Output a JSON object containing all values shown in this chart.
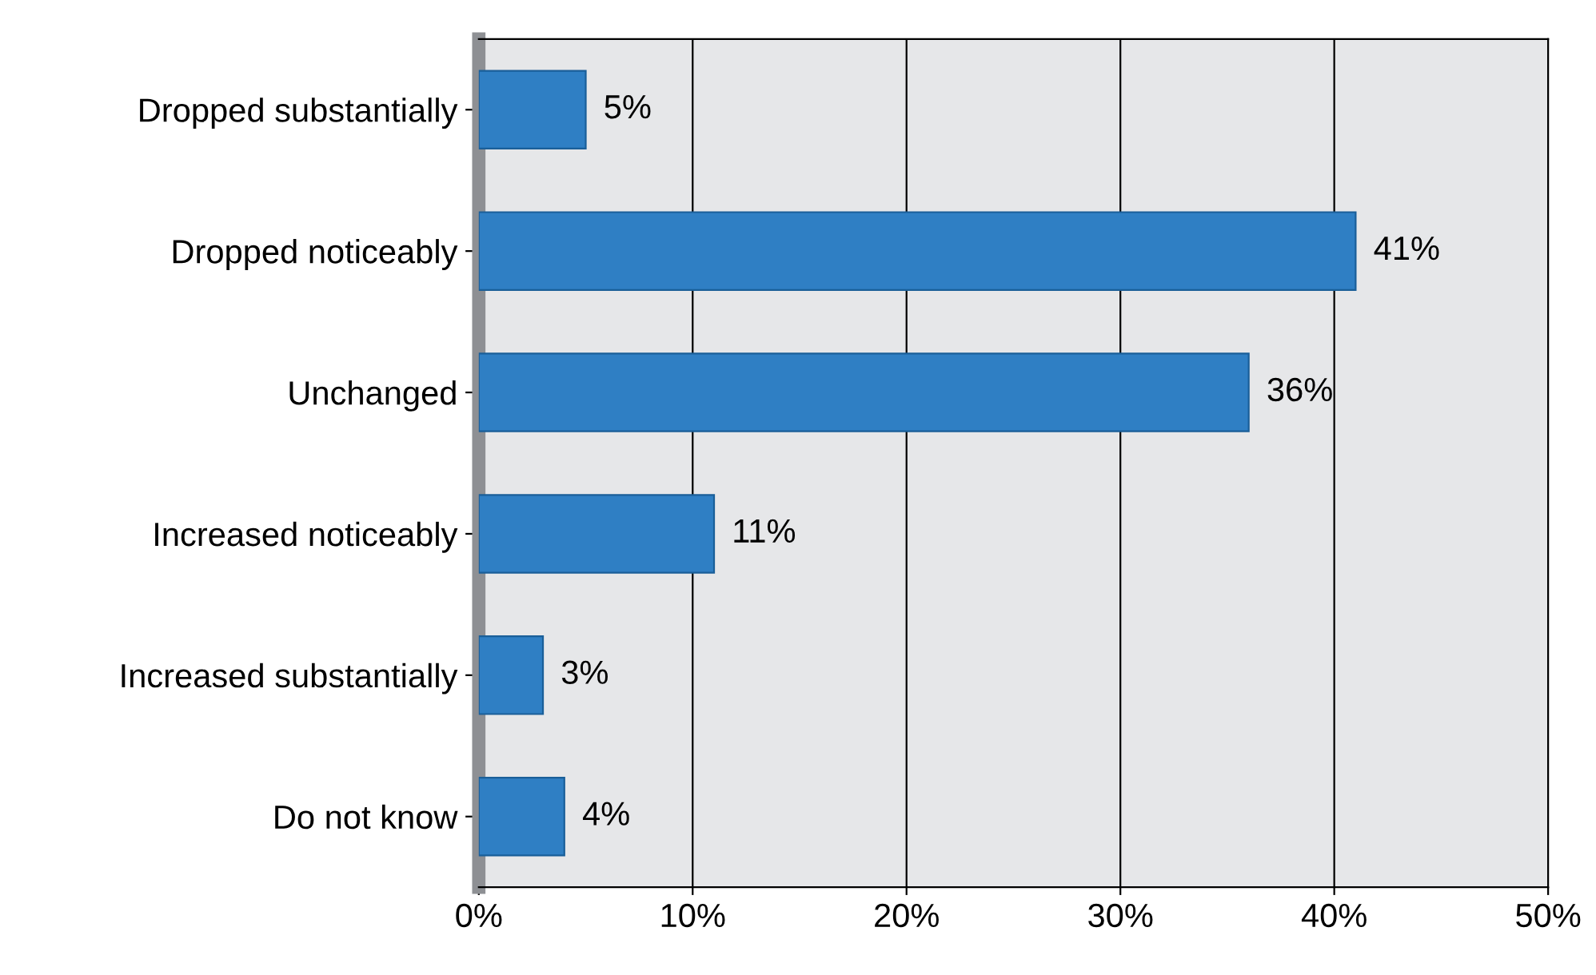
{
  "chart_data": {
    "type": "bar",
    "orientation": "horizontal",
    "categories": [
      "Dropped substantially",
      "Dropped noticeably",
      "Unchanged",
      "Increased noticeably",
      "Increased substantially",
      "Do not know"
    ],
    "values": [
      5,
      41,
      36,
      11,
      3,
      4
    ],
    "value_labels": [
      "5%",
      "41%",
      "36%",
      "11%",
      "3%",
      "4%"
    ],
    "color": "#2f7fc4",
    "xlim": [
      0,
      50
    ],
    "xticks": [
      {
        "value": 0,
        "label": "0%"
      },
      {
        "value": 10,
        "label": "10%"
      },
      {
        "value": 20,
        "label": "20%"
      },
      {
        "value": 30,
        "label": "30%"
      },
      {
        "value": 40,
        "label": "40%"
      },
      {
        "value": 50,
        "label": "50%"
      }
    ],
    "grid": "x"
  }
}
